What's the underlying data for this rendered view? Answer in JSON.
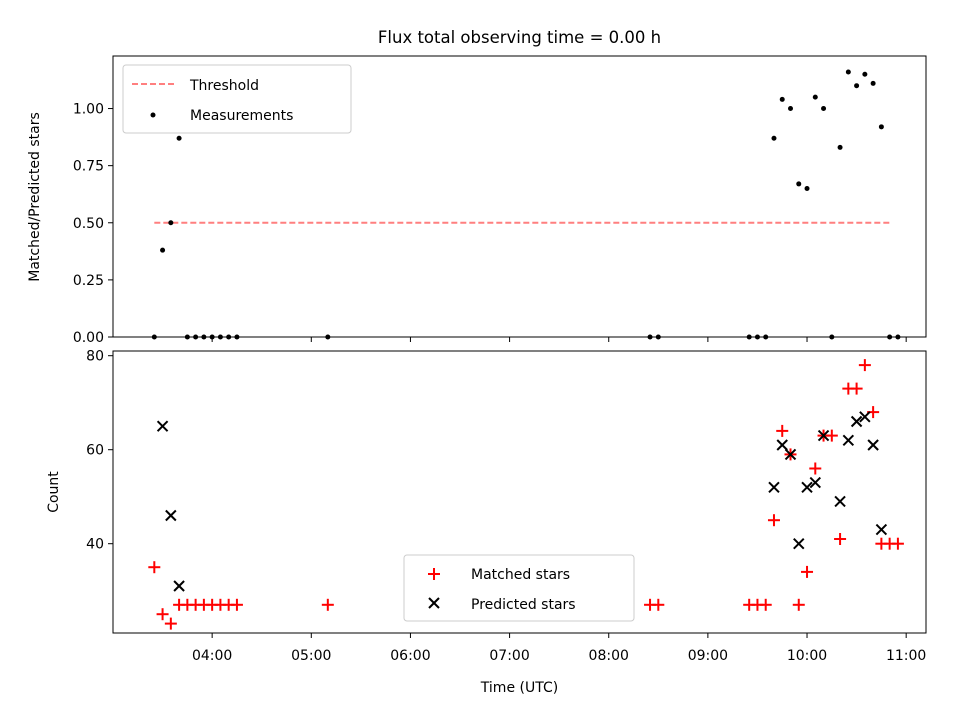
{
  "chart_data": [
    {
      "type": "scatter",
      "title": "Flux total observing time = 0.00 h",
      "xlabel": "",
      "ylabel": "Matched/Predicted stars",
      "xlim": [
        "03:00",
        "11:12"
      ],
      "ylim": [
        0,
        1.23
      ],
      "yticks": [
        0.0,
        0.25,
        0.5,
        0.75,
        1.0,
        1.25
      ],
      "ytick_labels": [
        "0.00",
        "0.25",
        "0.50",
        "0.75",
        "1.00",
        ""
      ],
      "legend": {
        "placement": "top-left",
        "entries": [
          "Threshold",
          "Measurements"
        ]
      },
      "threshold": {
        "name": "Threshold",
        "value": 0.5,
        "x_start": "03:25",
        "x_end": "10:50",
        "color": "#ff7f7f"
      },
      "series": [
        {
          "name": "Measurements",
          "color": "#000000",
          "x": [
            "03:25",
            "03:30",
            "03:35",
            "03:40",
            "03:45",
            "03:50",
            "03:55",
            "04:00",
            "04:05",
            "04:10",
            "04:15",
            "05:10",
            "08:25",
            "08:30",
            "09:25",
            "09:30",
            "09:35",
            "09:40",
            "09:45",
            "09:50",
            "09:55",
            "10:00",
            "10:05",
            "10:10",
            "10:15",
            "10:20",
            "10:25",
            "10:30",
            "10:35",
            "10:40",
            "10:45",
            "10:50",
            "10:55"
          ],
          "y": [
            0.0,
            0.38,
            0.5,
            0.87,
            0.0,
            0.0,
            0.0,
            0.0,
            0.0,
            0.0,
            0.0,
            0.0,
            0.0,
            0.0,
            0.0,
            0.0,
            0.0,
            0.87,
            1.04,
            1.0,
            0.67,
            0.65,
            1.05,
            1.0,
            0.0,
            0.83,
            1.16,
            1.1,
            1.15,
            1.11,
            0.92,
            0.0,
            0.0
          ]
        }
      ]
    },
    {
      "type": "scatter",
      "title": "",
      "xlabel": "Time (UTC)",
      "ylabel": "Count",
      "xlim": [
        "03:00",
        "11:12"
      ],
      "ylim": [
        21,
        81
      ],
      "xticks": [
        "04:00",
        "05:00",
        "06:00",
        "07:00",
        "08:00",
        "09:00",
        "10:00",
        "11:00"
      ],
      "yticks": [
        40,
        60,
        80
      ],
      "legend": {
        "placement": "bottom-center",
        "entries": [
          "Matched stars",
          "Predicted stars"
        ]
      },
      "series": [
        {
          "name": "Matched stars",
          "marker": "plus",
          "color": "#ff0000",
          "x": [
            "03:25",
            "03:30",
            "03:35",
            "03:40",
            "03:45",
            "03:50",
            "03:55",
            "04:00",
            "04:05",
            "04:10",
            "04:15",
            "05:10",
            "08:25",
            "08:30",
            "09:25",
            "09:30",
            "09:35",
            "09:40",
            "09:45",
            "09:50",
            "09:55",
            "10:00",
            "10:05",
            "10:10",
            "10:15",
            "10:20",
            "10:25",
            "10:30",
            "10:35",
            "10:40",
            "10:45",
            "10:50",
            "10:55"
          ],
          "y": [
            35,
            25,
            23,
            27,
            27,
            27,
            27,
            27,
            27,
            27,
            27,
            27,
            27,
            27,
            27,
            27,
            27,
            45,
            64,
            59,
            27,
            34,
            56,
            63,
            63,
            41,
            73,
            73,
            78,
            68,
            40,
            40,
            40
          ]
        },
        {
          "name": "Predicted stars",
          "marker": "x",
          "color": "#000000",
          "x": [
            "03:30",
            "03:35",
            "03:40",
            "09:40",
            "09:45",
            "09:50",
            "09:55",
            "10:00",
            "10:05",
            "10:10",
            "10:20",
            "10:25",
            "10:30",
            "10:35",
            "10:40",
            "10:45"
          ],
          "y": [
            65,
            46,
            31,
            52,
            61,
            59,
            40,
            52,
            53,
            63,
            49,
            62,
            66,
            67,
            61,
            43
          ]
        }
      ]
    }
  ]
}
